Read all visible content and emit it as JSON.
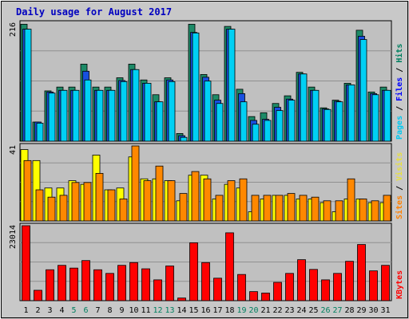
{
  "chart_data": {
    "type": "bar",
    "title": "Daily usage for August 2017",
    "categories": [
      "1",
      "2",
      "3",
      "4",
      "5",
      "6",
      "7",
      "8",
      "9",
      "10",
      "11",
      "12",
      "13",
      "14",
      "15",
      "16",
      "17",
      "18",
      "19",
      "20",
      "21",
      "22",
      "23",
      "24",
      "25",
      "26",
      "27",
      "28",
      "29",
      "30",
      "31"
    ],
    "weekend_days": [
      "5",
      "6",
      "12",
      "13",
      "19",
      "20",
      "26",
      "27"
    ],
    "panels": [
      {
        "id": "hits-files-pages",
        "ymax": 216,
        "ymax_label": "216",
        "labels": [
          {
            "text": "Pages",
            "color": "#00c8f0"
          },
          {
            "text": " / ",
            "color": "#000000"
          },
          {
            "text": "Files",
            "color": "#0000ff"
          },
          {
            "text": " / ",
            "color": "#000000"
          },
          {
            "text": "Hits",
            "color": "#008060"
          }
        ],
        "series": [
          {
            "key": "hits",
            "color": "#1d8a67",
            "values": [
              214,
              35,
              92,
              99,
              99,
              141,
              99,
              99,
              116,
              141,
              112,
              85,
              116,
              14,
              214,
              122,
              85,
              210,
              95,
              45,
              52,
              69,
              83,
              126,
              99,
              61,
              75,
              106,
              203,
              90,
              99
            ]
          },
          {
            "key": "files",
            "color": "#1850e0",
            "values": [
              205,
              35,
              90,
              93,
              93,
              128,
              93,
              93,
              111,
              131,
              106,
              72,
              112,
              10,
              199,
              117,
              75,
              205,
              87,
              38,
              40,
              62,
              77,
              123,
              93,
              59,
              73,
              103,
              192,
              87,
              93
            ]
          },
          {
            "key": "pages",
            "color": "#00d0f4",
            "values": [
              205,
              33,
              88,
              93,
              93,
              112,
              93,
              93,
              109,
              131,
              106,
              72,
              109,
              7,
              198,
              110,
              69,
              205,
              72,
              31,
              38,
              56,
              75,
              123,
              93,
              58,
              72,
              103,
              186,
              85,
              93
            ]
          }
        ]
      },
      {
        "id": "visits-sites",
        "ymax": 41,
        "ymax_label": "41",
        "labels": [
          {
            "text": "Sites",
            "color": "#ff8000"
          },
          {
            "text": " / ",
            "color": "#000000"
          },
          {
            "text": "Visits",
            "color": "#e8e040"
          }
        ],
        "series": [
          {
            "key": "visits",
            "color": "#ffff00",
            "values": [
              39,
              33,
              18,
              18,
              22,
              20,
              36,
              17,
              18,
              35,
              23,
              23,
              22,
              11,
              25,
              25,
              12,
              20,
              18,
              5,
              12,
              14,
              14,
              12,
              12,
              10,
              5,
              12,
              12,
              10,
              10
            ]
          },
          {
            "key": "sites",
            "color": "#ff8800",
            "values": [
              33,
              17,
              13,
              14,
              21,
              21,
              26,
              17,
              12,
              41,
              22,
              30,
              22,
              15,
              27,
              23,
              14,
              22,
              23,
              14,
              14,
              14,
              15,
              14,
              13,
              11,
              11,
              23,
              12,
              11,
              14
            ]
          }
        ]
      },
      {
        "id": "kbytes",
        "ymax": 23014,
        "ymax_label": "23014",
        "labels": [
          {
            "text": "KBytes",
            "color": "#ff0000"
          }
        ],
        "series": [
          {
            "key": "kbytes",
            "color": "#ff0000",
            "values": [
              23014,
              3190,
              9490,
              10840,
              10000,
              12310,
              9490,
              8370,
              10840,
              11690,
              9780,
              6390,
              10650,
              810,
              17770,
              11690,
              6900,
              20830,
              8040,
              2780,
              2330,
              5620,
              8370,
              12580,
              9590,
              6390,
              8370,
              12080,
              17240,
              9150,
              10840
            ]
          }
        ]
      }
    ]
  }
}
